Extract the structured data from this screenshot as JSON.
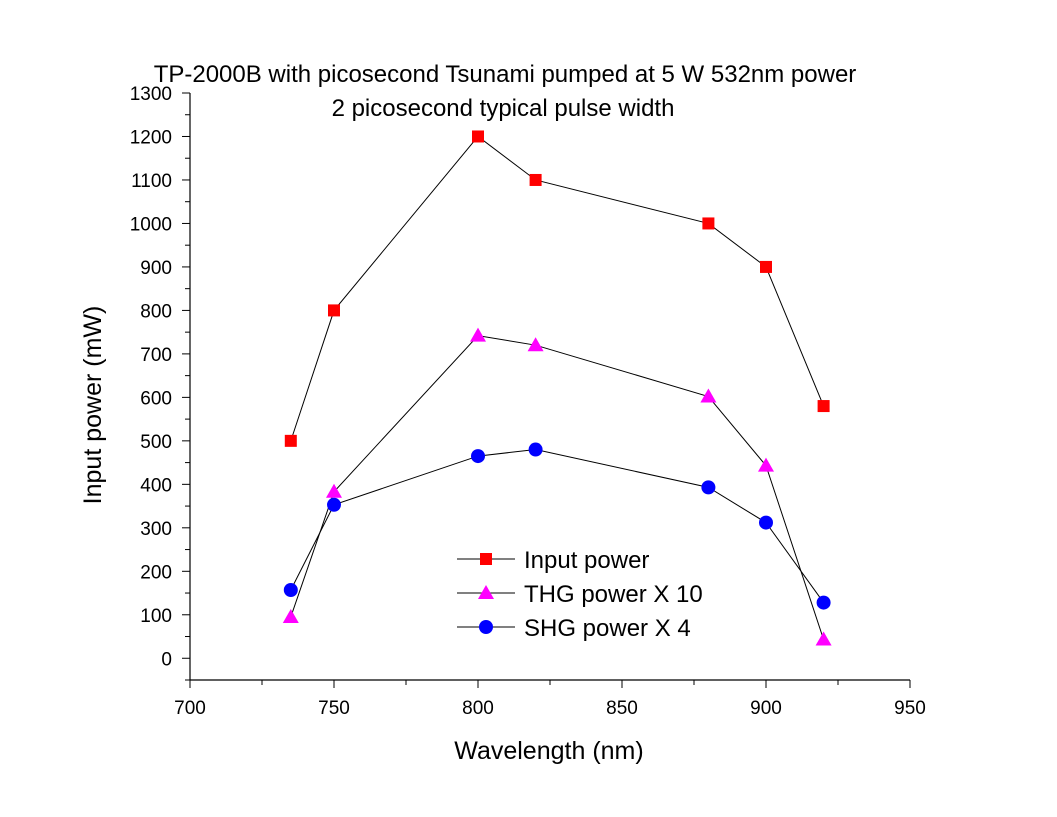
{
  "chart_data": {
    "type": "scatter",
    "title": "TP-2000B with picosecond Tsunami pumped at 5 W 532nm power",
    "subtitle": "2 picosecond typical pulse width",
    "xlabel": "Wavelength (nm)",
    "ylabel": "Input power (mW)",
    "xlim": [
      700,
      950
    ],
    "ylim": [
      -50,
      1300
    ],
    "x_ticks": [
      700,
      750,
      800,
      850,
      900,
      950
    ],
    "y_ticks": [
      0,
      100,
      200,
      300,
      400,
      500,
      600,
      700,
      800,
      900,
      1000,
      1100,
      1200,
      1300
    ],
    "grid": false,
    "legend_position": "bottom-center",
    "lines_connected": true,
    "series": [
      {
        "name": "Input power",
        "marker": "square",
        "color": "#ff0000",
        "points": [
          [
            735,
            500
          ],
          [
            750,
            800
          ],
          [
            800,
            1200
          ],
          [
            820,
            1100
          ],
          [
            880,
            1000
          ],
          [
            900,
            900
          ],
          [
            920,
            580
          ]
        ]
      },
      {
        "name": "THG power X 10",
        "marker": "triangle",
        "color": "#ff00ff",
        "points": [
          [
            735,
            95
          ],
          [
            750,
            383
          ],
          [
            800,
            742
          ],
          [
            820,
            720
          ],
          [
            880,
            602
          ],
          [
            900,
            443
          ],
          [
            920,
            43
          ]
        ]
      },
      {
        "name": "SHG power X 4",
        "marker": "circle",
        "color": "#0000ff",
        "points": [
          [
            735,
            157
          ],
          [
            750,
            353
          ],
          [
            800,
            465
          ],
          [
            820,
            480
          ],
          [
            880,
            393
          ],
          [
            900,
            312
          ],
          [
            920,
            128
          ]
        ]
      }
    ]
  }
}
